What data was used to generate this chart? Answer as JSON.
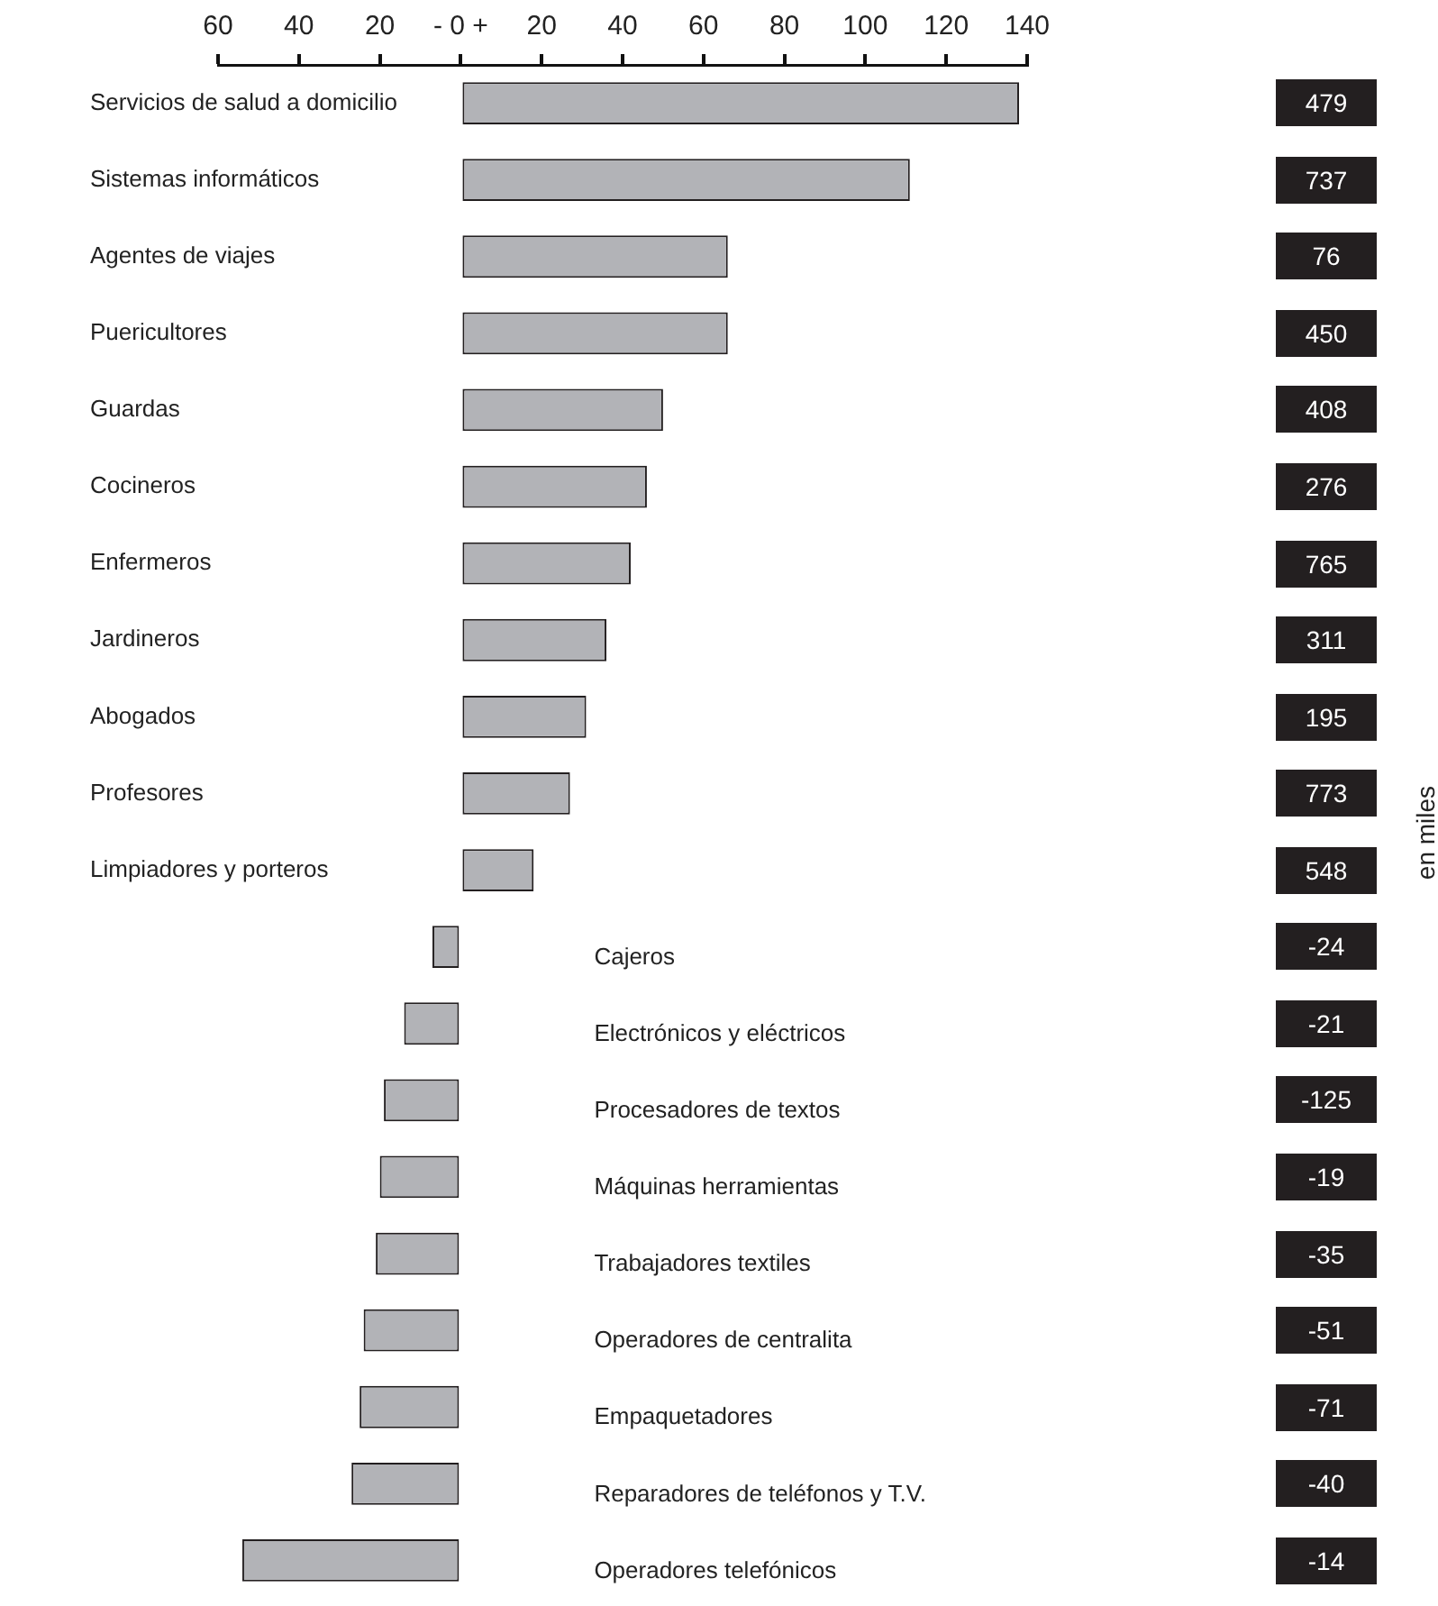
{
  "chart_data": {
    "type": "bar",
    "orientation": "horizontal",
    "categories": [
      "Servicios de salud a domicilio",
      "Sistemas informáticos",
      "Agentes de viajes",
      "Puericultores",
      "Guardas",
      "Cocineros",
      "Enfermeros",
      "Jardineros",
      "Abogados",
      "Profesores",
      "Limpiadores y porteros",
      "Cajeros",
      "Electrónicos y eléctricos",
      "Procesadores de textos",
      "Máquinas herramientas",
      "Trabajadores textiles",
      "Operadores de centralita",
      "Empaquetadores",
      "Reparadores de teléfonos y T.V.",
      "Operadores telefónicos"
    ],
    "values": [
      138,
      111,
      66,
      66,
      50,
      46,
      42,
      36,
      31,
      27,
      18,
      -7,
      -14,
      -19,
      -20,
      -21,
      -24,
      -25,
      -27,
      -54
    ],
    "color": "#b2b3b7",
    "xlim": [
      -60,
      140
    ],
    "xticks": [
      {
        "value": -60,
        "label": "60"
      },
      {
        "value": -40,
        "label": "40"
      },
      {
        "value": -20,
        "label": "20"
      },
      {
        "value": 0,
        "label": "- 0 +"
      },
      20,
      40,
      60,
      80,
      100,
      120,
      140
    ],
    "grid": false,
    "legend": false,
    "annotations": [
      "479",
      "737",
      "76",
      "450",
      "408",
      "276",
      "765",
      "311",
      "195",
      "773",
      "548",
      "-24",
      "-21",
      "-125",
      "-19",
      "-35",
      "-51",
      "-71",
      "-40",
      "-14",
      "en miles"
    ]
  }
}
